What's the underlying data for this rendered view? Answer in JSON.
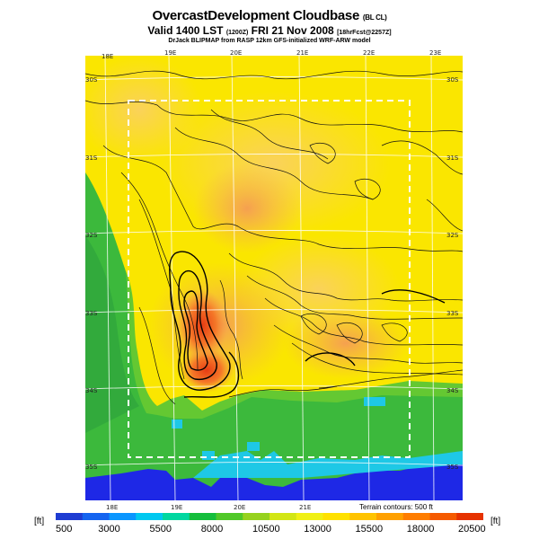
{
  "header": {
    "title": "OvercastDevelopment Cloudbase",
    "title_tag": "(BL CL)",
    "valid": "Valid 1400 LST",
    "valid_code": "(1200Z)",
    "valid_date": "FRI 21 Nov 2008",
    "forecast_tag": "[18hrFcst@2257Z]",
    "model_line": "DrJack BLIPMAP from RASP 12km GFS-initialized WRF-ARW model"
  },
  "map": {
    "lon_labels_top": [
      "18E",
      "19E",
      "20E",
      "21E",
      "22E",
      "23E"
    ],
    "lon_labels_bottom": [
      "18E",
      "19E",
      "20E",
      "21E"
    ],
    "lat_labels_left": [
      "30S",
      "31S",
      "32S",
      "33S",
      "34S",
      "35S"
    ],
    "lat_labels_right": [
      "30S",
      "31S",
      "32S",
      "33S",
      "34S",
      "35S"
    ],
    "terrain_note": "Terrain contours: 500 ft"
  },
  "colorbar": {
    "unit_left": "[ft]",
    "unit_right": "[ft]",
    "labels": [
      "500",
      "3000",
      "5500",
      "8000",
      "10500",
      "13000",
      "15500",
      "18000",
      "20500"
    ],
    "colors": [
      "#1e3cd2",
      "#1464f0",
      "#0a96ff",
      "#00c8f0",
      "#00d7a0",
      "#14be3c",
      "#50c828",
      "#96d21e",
      "#d2e614",
      "#f0f014",
      "#ffe100",
      "#ffc300",
      "#ffa000",
      "#ff7d00",
      "#f55a00",
      "#e63200"
    ]
  }
}
